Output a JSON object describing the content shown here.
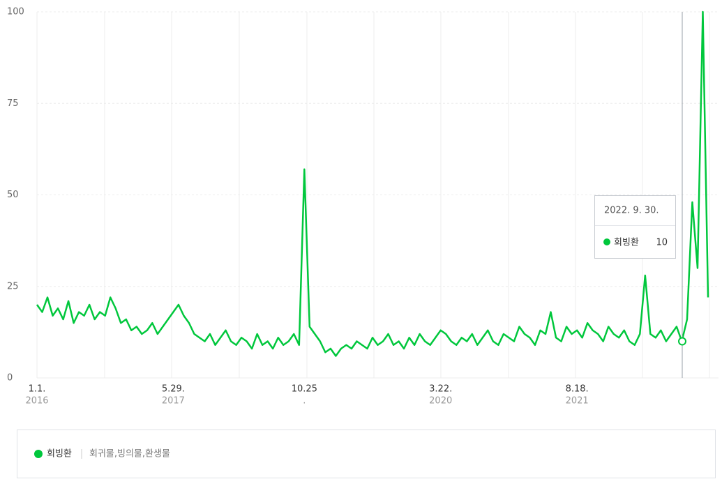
{
  "chart_data": {
    "type": "line",
    "categories": [
      "1.1.",
      null,
      null,
      null,
      null,
      null,
      null,
      null,
      null,
      null,
      null,
      null,
      null,
      null,
      null,
      null,
      null,
      null,
      null,
      null,
      null,
      null,
      null,
      null,
      null,
      null,
      "5.29.",
      null,
      null,
      null,
      null,
      null,
      null,
      null,
      null,
      null,
      null,
      null,
      null,
      null,
      null,
      null,
      null,
      null,
      null,
      null,
      null,
      null,
      null,
      null,
      null,
      "10.25",
      null,
      null,
      null,
      null,
      null,
      null,
      null,
      null,
      null,
      null,
      null,
      null,
      null,
      null,
      null,
      null,
      null,
      null,
      null,
      null,
      null,
      null,
      null,
      null,
      null,
      "3.22.",
      null,
      null,
      null,
      null,
      null,
      null,
      null,
      null,
      null,
      null,
      null,
      null,
      null,
      null,
      null,
      null,
      null,
      null,
      null,
      null,
      null,
      null,
      null,
      null,
      null,
      "8.18.",
      null,
      null,
      null,
      null,
      null,
      null,
      null,
      null,
      null,
      null,
      null,
      null,
      null,
      null,
      null,
      null,
      null,
      null,
      null,
      null,
      null,
      null,
      null,
      null,
      null
    ],
    "category_sublabels": [
      "2016",
      null,
      null,
      null,
      null,
      null,
      null,
      null,
      null,
      null,
      null,
      null,
      null,
      null,
      null,
      null,
      null,
      null,
      null,
      null,
      null,
      null,
      null,
      null,
      null,
      null,
      "2017",
      null,
      null,
      null,
      null,
      null,
      null,
      null,
      null,
      null,
      null,
      null,
      null,
      null,
      null,
      null,
      null,
      null,
      null,
      null,
      null,
      null,
      null,
      null,
      null,
      ".",
      null,
      null,
      null,
      null,
      null,
      null,
      null,
      null,
      null,
      null,
      null,
      null,
      null,
      null,
      null,
      null,
      null,
      null,
      null,
      null,
      null,
      null,
      null,
      null,
      null,
      "2020",
      null,
      null,
      null,
      null,
      null,
      null,
      null,
      null,
      null,
      null,
      null,
      null,
      null,
      null,
      null,
      null,
      null,
      null,
      null,
      null,
      null,
      null,
      null,
      null,
      null,
      "2021",
      null,
      null,
      null,
      null,
      null,
      null,
      null,
      null,
      null,
      null,
      null,
      null,
      null,
      null,
      null,
      null,
      null,
      null,
      null,
      null,
      null,
      null,
      null,
      null,
      null
    ],
    "series": [
      {
        "name": "회빙환",
        "color": "#00c73c",
        "keywords": "회귀물,빙의물,환생물",
        "values": [
          20,
          18,
          22,
          17,
          19,
          16,
          21,
          15,
          18,
          17,
          20,
          16,
          18,
          17,
          22,
          19,
          15,
          16,
          13,
          14,
          12,
          13,
          15,
          12,
          14,
          16,
          18,
          20,
          17,
          15,
          12,
          11,
          10,
          12,
          9,
          11,
          13,
          10,
          9,
          11,
          10,
          8,
          12,
          9,
          10,
          8,
          11,
          9,
          10,
          12,
          9,
          57,
          14,
          12,
          10,
          7,
          8,
          6,
          8,
          9,
          8,
          10,
          9,
          8,
          11,
          9,
          10,
          12,
          9,
          10,
          8,
          11,
          9,
          12,
          10,
          9,
          11,
          13,
          12,
          10,
          9,
          11,
          10,
          12,
          9,
          11,
          13,
          10,
          9,
          12,
          11,
          10,
          14,
          12,
          11,
          9,
          13,
          12,
          18,
          11,
          10,
          14,
          12,
          13,
          11,
          15,
          13,
          12,
          10,
          14,
          12,
          11,
          13,
          10,
          9,
          12,
          28,
          12,
          11,
          13,
          10,
          12,
          14,
          10,
          16,
          48,
          30,
          100,
          22
        ]
      }
    ],
    "ylim": [
      0,
      100
    ],
    "yticks": [
      0,
      25,
      50,
      75,
      100
    ],
    "grid": true,
    "tooltip": {
      "title": "2022. 9. 30.",
      "value": 10
    }
  }
}
